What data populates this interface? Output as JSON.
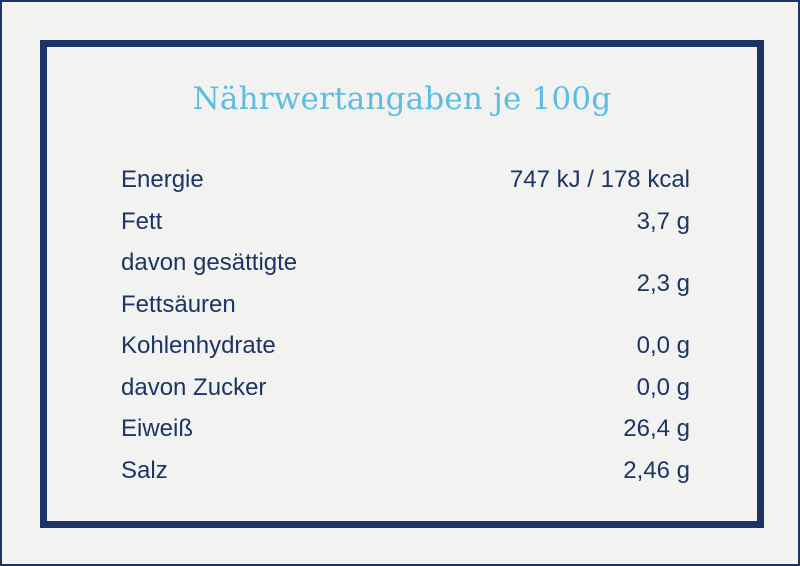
{
  "title": "Nährwertangaben je 100g",
  "rows": [
    {
      "label": "Energie",
      "value": "747 kJ / 178 kcal"
    },
    {
      "label": "Fett",
      "value": "3,7 g"
    },
    {
      "label": "davon gesättigte\nFettsäuren",
      "value": "2,3 g"
    },
    {
      "label": "Kohlenhydrate",
      "value": "0,0 g"
    },
    {
      "label": "davon Zucker",
      "value": "0,0 g"
    },
    {
      "label": "Eiweiß",
      "value": "26,4 g"
    },
    {
      "label": "Salz",
      "value": "2,46 g"
    }
  ],
  "colors": {
    "background": "#f2f2f0",
    "frame": "#1d3564",
    "title": "#5bbde3",
    "text": "#1d3564"
  }
}
